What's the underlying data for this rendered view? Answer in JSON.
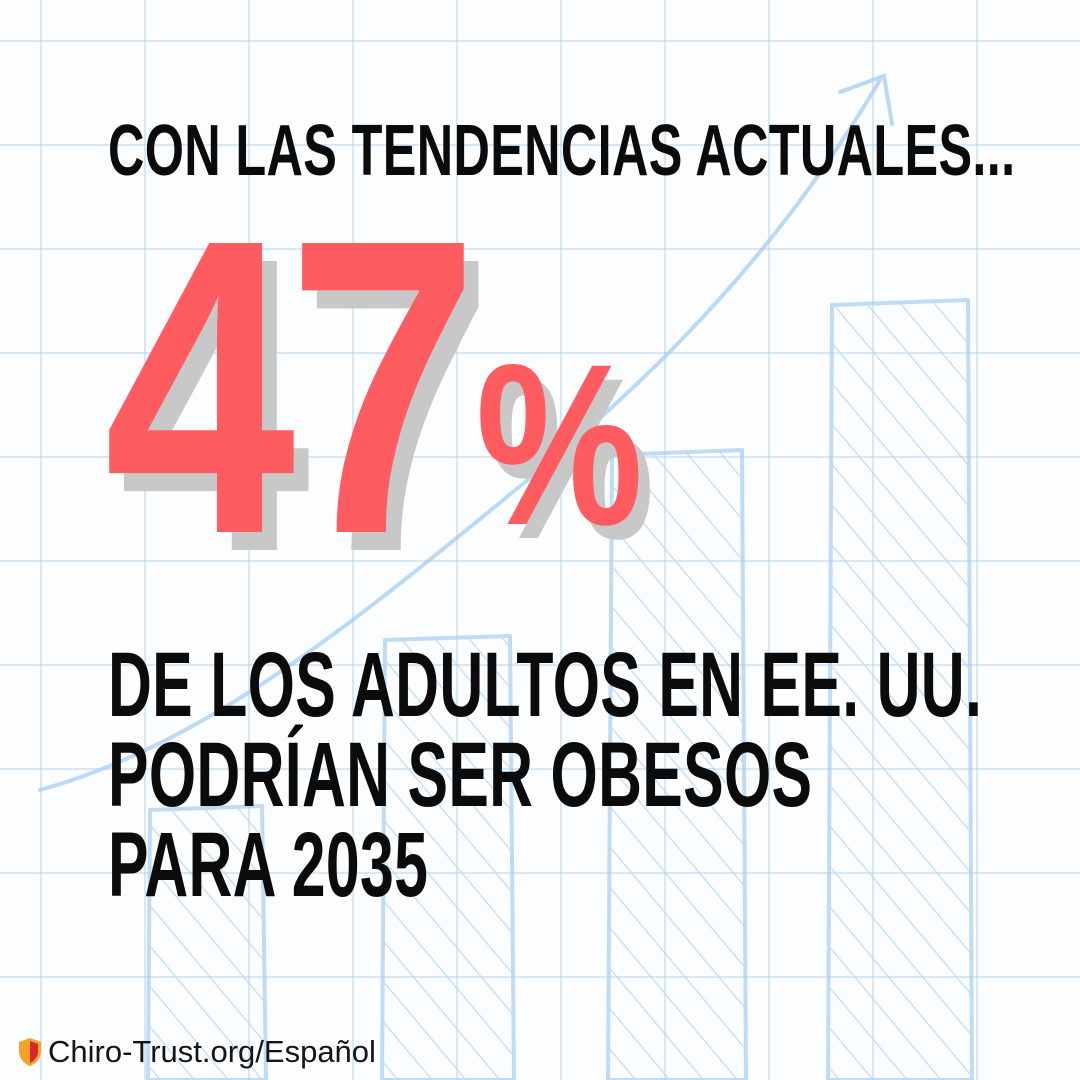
{
  "headline": "CON LAS TENDENCIAS ACTUALES...",
  "stat": {
    "value": "47",
    "unit": "%",
    "color": "#ff5c62",
    "shadow_color": "#c8c8c8"
  },
  "subline": {
    "lines": [
      "DE LOS ADULTOS EN EE. UU.",
      "PODRÍAN SER OBESOS",
      "PARA 2035"
    ]
  },
  "footer": {
    "icon": "shield-icon",
    "text": "Chiro-Trust.org/Español",
    "icon_color": "#f4a12b",
    "icon_accent": "#d7262e"
  },
  "background": {
    "style": "hand-drawn rising bar chart on grid paper",
    "color": "#a8cef0"
  }
}
